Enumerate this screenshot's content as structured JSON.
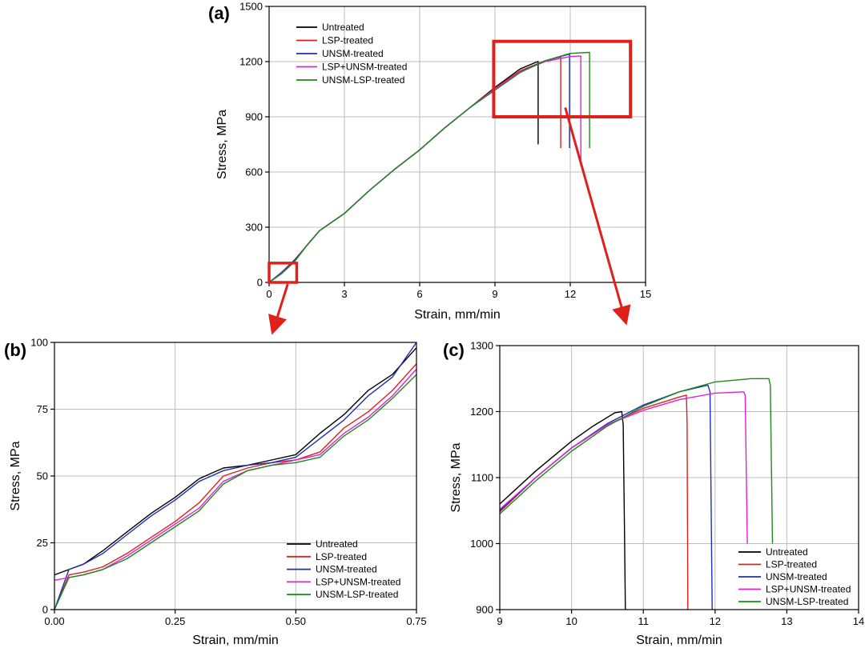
{
  "colors": {
    "untreated": "#000000",
    "lsp": "#e0201b",
    "unsm": "#1f2fb4",
    "lsp_unsm": "#e020d8",
    "unsm_lsp": "#1c8a1c",
    "highlight": "#e0201b"
  },
  "chart_data": [
    {
      "panel": "(a)",
      "type": "line",
      "xlabel": "Strain, mm/min",
      "ylabel": "Stress, MPa",
      "xlim": [
        0,
        15
      ],
      "ylim": [
        0,
        1500
      ],
      "xticks": [
        0,
        3,
        6,
        9,
        12,
        15
      ],
      "yticks": [
        0,
        300,
        600,
        900,
        1200,
        1500
      ],
      "grid": true,
      "legend_position": "top-left",
      "series": [
        {
          "name": "Untreated",
          "color_key": "untreated",
          "x": [
            0,
            0.5,
            1,
            1.5,
            2,
            3,
            4,
            5,
            6,
            7,
            8,
            9,
            10,
            10.7,
            10.72,
            10.72
          ],
          "y": [
            0,
            55,
            120,
            200,
            280,
            375,
            500,
            615,
            720,
            840,
            950,
            1060,
            1160,
            1200,
            1200,
            750
          ]
        },
        {
          "name": "LSP-treated",
          "color_key": "lsp",
          "x": [
            0,
            0.5,
            1,
            1.5,
            2,
            3,
            4,
            5,
            6,
            7,
            8,
            9,
            10,
            11,
            11.6,
            11.62,
            11.62
          ],
          "y": [
            0,
            50,
            115,
            200,
            280,
            375,
            500,
            615,
            720,
            840,
            950,
            1055,
            1150,
            1205,
            1225,
            1225,
            730
          ]
        },
        {
          "name": "UNSM-treated",
          "color_key": "unsm",
          "x": [
            0,
            0.5,
            1,
            1.5,
            2,
            3,
            4,
            5,
            6,
            7,
            8,
            9,
            10,
            11,
            11.95,
            11.97,
            11.97
          ],
          "y": [
            0,
            55,
            118,
            200,
            280,
            375,
            500,
            615,
            720,
            840,
            950,
            1050,
            1145,
            1205,
            1240,
            1240,
            730
          ]
        },
        {
          "name": "LSP+UNSM-treated",
          "color_key": "lsp_unsm",
          "x": [
            0,
            0.5,
            1,
            1.5,
            2,
            3,
            4,
            5,
            6,
            7,
            8,
            9,
            10,
            11,
            12,
            12.4,
            12.42,
            12.42
          ],
          "y": [
            0,
            50,
            112,
            200,
            280,
            375,
            500,
            615,
            720,
            840,
            950,
            1050,
            1145,
            1200,
            1228,
            1230,
            1230,
            630
          ]
        },
        {
          "name": "UNSM-LSP-treated",
          "color_key": "unsm_lsp",
          "x": [
            0,
            0.5,
            1,
            1.5,
            2,
            3,
            4,
            5,
            6,
            7,
            8,
            9,
            10,
            11,
            12,
            12.75,
            12.77,
            12.77
          ],
          "y": [
            0,
            48,
            110,
            200,
            280,
            375,
            500,
            615,
            720,
            840,
            950,
            1045,
            1140,
            1205,
            1245,
            1250,
            1250,
            730
          ]
        }
      ]
    },
    {
      "panel": "(b)",
      "type": "line",
      "xlabel": "Strain, mm/min",
      "ylabel": "Stress, MPa",
      "xlim": [
        0,
        0.75
      ],
      "ylim": [
        0,
        100
      ],
      "xticks": [
        0.0,
        0.25,
        0.5,
        0.75
      ],
      "xtick_labels": [
        "0.00",
        "0.25",
        "0.50",
        "0.75"
      ],
      "yticks": [
        0,
        25,
        50,
        75,
        100
      ],
      "grid": true,
      "legend_position": "bottom-right",
      "series": [
        {
          "name": "Untreated",
          "color_key": "untreated",
          "x": [
            0,
            0.03,
            0.06,
            0.1,
            0.15,
            0.2,
            0.25,
            0.3,
            0.35,
            0.4,
            0.45,
            0.5,
            0.55,
            0.6,
            0.65,
            0.7,
            0.75
          ],
          "y": [
            13,
            15,
            17,
            22,
            29,
            36,
            42,
            49,
            53,
            54,
            56,
            58,
            66,
            73,
            82,
            88,
            98
          ]
        },
        {
          "name": "LSP-treated",
          "color_key": "lsp",
          "x": [
            0,
            0.03,
            0.06,
            0.1,
            0.15,
            0.2,
            0.25,
            0.3,
            0.35,
            0.4,
            0.45,
            0.5,
            0.55,
            0.6,
            0.65,
            0.7,
            0.75
          ],
          "y": [
            0,
            13,
            14,
            16,
            21,
            27,
            33,
            40,
            50,
            53,
            55,
            56,
            59,
            68,
            74,
            82,
            92
          ]
        },
        {
          "name": "UNSM-treated",
          "color_key": "unsm",
          "x": [
            0,
            0.03,
            0.06,
            0.1,
            0.15,
            0.2,
            0.25,
            0.3,
            0.35,
            0.4,
            0.45,
            0.5,
            0.55,
            0.6,
            0.65,
            0.7,
            0.75
          ],
          "y": [
            0,
            15,
            17,
            21,
            28,
            35,
            41,
            48,
            52,
            54,
            55,
            57,
            64,
            71,
            80,
            87,
            100
          ]
        },
        {
          "name": "LSP+UNSM-treated",
          "color_key": "lsp_unsm",
          "x": [
            0,
            0.03,
            0.06,
            0.1,
            0.15,
            0.2,
            0.25,
            0.3,
            0.35,
            0.4,
            0.45,
            0.5,
            0.55,
            0.6,
            0.65,
            0.7,
            0.75
          ],
          "y": [
            11,
            12,
            13,
            15,
            20,
            26,
            32,
            38,
            48,
            52,
            54,
            56,
            58,
            66,
            72,
            80,
            90
          ]
        },
        {
          "name": "UNSM-LSP-treated",
          "color_key": "unsm_lsp",
          "x": [
            0,
            0.03,
            0.06,
            0.1,
            0.15,
            0.2,
            0.25,
            0.3,
            0.35,
            0.4,
            0.45,
            0.5,
            0.55,
            0.6,
            0.65,
            0.7,
            0.75
          ],
          "y": [
            0,
            12,
            13,
            15,
            19,
            25,
            31,
            37,
            47,
            52,
            54,
            55,
            57,
            65,
            71,
            79,
            88
          ]
        }
      ]
    },
    {
      "panel": "(c)",
      "type": "line",
      "xlabel": "Strain, mm/min",
      "ylabel": "Stress, MPa",
      "xlim": [
        9,
        14
      ],
      "ylim": [
        900,
        1300
      ],
      "xticks": [
        9,
        10,
        11,
        12,
        13,
        14
      ],
      "yticks": [
        900,
        1000,
        1100,
        1200,
        1300
      ],
      "grid": true,
      "legend_position": "bottom-right",
      "series": [
        {
          "name": "Untreated",
          "color_key": "untreated",
          "x": [
            9,
            9.5,
            10,
            10.3,
            10.6,
            10.7,
            10.72,
            10.74,
            10.75
          ],
          "y": [
            1060,
            1110,
            1155,
            1178,
            1198,
            1200,
            1180,
            1000,
            900
          ]
        },
        {
          "name": "LSP-treated",
          "color_key": "lsp",
          "x": [
            9,
            9.5,
            10,
            10.5,
            11,
            11.5,
            11.6,
            11.61,
            11.62
          ],
          "y": [
            1048,
            1100,
            1145,
            1180,
            1205,
            1222,
            1225,
            1180,
            900
          ]
        },
        {
          "name": "UNSM-treated",
          "color_key": "unsm",
          "x": [
            9,
            9.5,
            10,
            10.5,
            11,
            11.5,
            11.9,
            11.93,
            11.96
          ],
          "y": [
            1050,
            1100,
            1145,
            1182,
            1210,
            1230,
            1240,
            1230,
            900
          ]
        },
        {
          "name": "LSP+UNSM-treated",
          "color_key": "lsp_unsm",
          "x": [
            9,
            9.5,
            10,
            10.5,
            11,
            11.5,
            12,
            12.4,
            12.42,
            12.45
          ],
          "y": [
            1052,
            1100,
            1145,
            1180,
            1202,
            1218,
            1228,
            1230,
            1225,
            1000
          ]
        },
        {
          "name": "UNSM-LSP-treated",
          "color_key": "unsm_lsp",
          "x": [
            9,
            9.5,
            10,
            10.5,
            11,
            11.5,
            12,
            12.5,
            12.75,
            12.77,
            12.8
          ],
          "y": [
            1045,
            1095,
            1140,
            1178,
            1208,
            1230,
            1245,
            1250,
            1250,
            1240,
            1000
          ]
        }
      ]
    }
  ]
}
